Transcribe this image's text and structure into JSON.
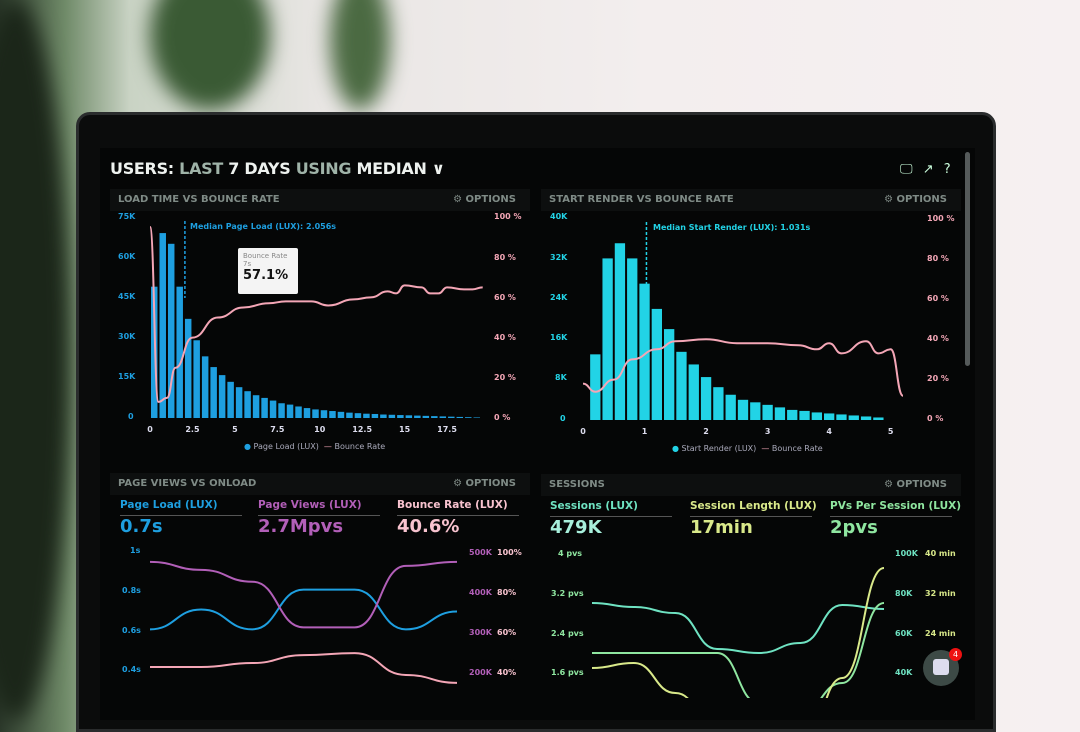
{
  "header": {
    "prefix": "USERS:",
    "part1": "LAST",
    "part2": "7 DAYS",
    "part3": "USING",
    "part4": "MEDIAN",
    "icons": [
      "monitor-icon",
      "share-icon",
      "help-icon"
    ]
  },
  "colors": {
    "blue": "#1e9fe0",
    "cyan": "#22d3e6",
    "pink": "#f4a6b6",
    "purple": "#b25fb8",
    "teal": "#6fe3c2",
    "yellow": "#d9e98a",
    "green": "#8fe6a0"
  },
  "options_label": "OPTIONS",
  "charts": {
    "load": {
      "title": "LOAD TIME VS BOUNCE RATE",
      "median_label": "Median Page Load (LUX): 2.056s",
      "median": 2.056,
      "tooltip": {
        "title": "Bounce Rate",
        "sub": "7s",
        "value": "57.1%"
      },
      "legend": [
        "Page Load (LUX)",
        "Bounce Rate"
      ],
      "y_ticks": [
        "75K",
        "60K",
        "45K",
        "30K",
        "15K",
        "0"
      ],
      "y2_ticks": [
        "100 %",
        "80 %",
        "60 %",
        "40 %",
        "20 %",
        "0 %"
      ],
      "x_ticks": [
        "0",
        "2.5",
        "5",
        "7.5",
        "10",
        "12.5",
        "15",
        "17.5"
      ]
    },
    "render": {
      "title": "START RENDER VS BOUNCE RATE",
      "median_label": "Median Start Render (LUX): 1.031s",
      "median": 1.031,
      "legend": [
        "Start Render (LUX)",
        "Bounce Rate"
      ],
      "y_ticks": [
        "40K",
        "32K",
        "24K",
        "16K",
        "8K",
        "0"
      ],
      "y2_ticks": [
        "100 %",
        "80 %",
        "60 %",
        "40 %",
        "20 %",
        "0 %"
      ],
      "x_ticks": [
        "0",
        "1",
        "2",
        "3",
        "4",
        "5"
      ]
    },
    "pageviews": {
      "title": "PAGE VIEWS VS ONLOAD",
      "kpis": [
        {
          "label": "Page Load (LUX)",
          "value": "0.7s"
        },
        {
          "label": "Page Views (LUX)",
          "value": "2.7Mpvs"
        },
        {
          "label": "Bounce Rate (LUX)",
          "value": "40.6%"
        }
      ],
      "y_ticks": [
        "1s",
        "0.8s",
        "0.6s",
        "0.4s"
      ],
      "y2_ticks": [
        "500K",
        "400K",
        "300K",
        "200K"
      ],
      "y3_ticks": [
        "100%",
        "80%",
        "60%",
        "40%"
      ]
    },
    "sessions": {
      "title": "SESSIONS",
      "kpis": [
        {
          "label": "Sessions (LUX)",
          "value": "479K"
        },
        {
          "label": "Session Length (LUX)",
          "value": "17min"
        },
        {
          "label": "PVs Per Session (LUX)",
          "value": "2pvs"
        }
      ],
      "y_ticks": [
        "4 pvs",
        "3.2 pvs",
        "2.4 pvs",
        "1.6 pvs"
      ],
      "y2_ticks": [
        "100K",
        "80K",
        "60K",
        "40K"
      ],
      "y3_ticks": [
        "40 min",
        "32 min",
        "24 min"
      ]
    }
  },
  "chat_badge": "4",
  "chart_data": [
    {
      "type": "bar",
      "title": "LOAD TIME VS BOUNCE RATE",
      "xlim": [
        0,
        19.5
      ],
      "ylim": [
        0,
        75000
      ],
      "y2lim": [
        0,
        100
      ],
      "series": [
        {
          "name": "Page Load (LUX)",
          "x_step": 0.5,
          "values": [
            49000,
            69000,
            65000,
            49000,
            37000,
            29000,
            23000,
            19000,
            16000,
            13500,
            11500,
            10000,
            8500,
            7500,
            6500,
            5500,
            5000,
            4300,
            3700,
            3200,
            2900,
            2600,
            2300,
            2000,
            1800,
            1600,
            1500,
            1300,
            1200,
            1100,
            1000,
            900,
            800,
            700,
            600,
            500,
            400,
            300,
            200
          ]
        },
        {
          "name": "Bounce Rate",
          "type": "line",
          "points": [
            [
              0,
              95
            ],
            [
              0.5,
              8
            ],
            [
              1,
              10
            ],
            [
              1.5,
              25
            ],
            [
              2.5,
              40
            ],
            [
              4,
              50
            ],
            [
              5.5,
              55
            ],
            [
              7,
              57.1
            ],
            [
              8,
              58
            ],
            [
              9.5,
              58
            ],
            [
              10.5,
              56
            ],
            [
              12,
              59
            ],
            [
              13,
              60
            ],
            [
              14,
              63
            ],
            [
              14.5,
              62
            ],
            [
              15,
              66
            ],
            [
              16,
              65
            ],
            [
              16.5,
              62
            ],
            [
              17,
              62
            ],
            [
              17.5,
              65
            ],
            [
              18.5,
              64
            ],
            [
              19,
              64
            ],
            [
              19.6,
              65
            ]
          ]
        }
      ]
    },
    {
      "type": "bar",
      "title": "START RENDER VS BOUNCE RATE",
      "xlim": [
        0,
        5.2
      ],
      "ylim": [
        0,
        40000
      ],
      "y2lim": [
        0,
        100
      ],
      "series": [
        {
          "name": "Start Render (LUX)",
          "x_step": 0.2,
          "values": [
            13000,
            32000,
            35000,
            32000,
            27000,
            22000,
            18000,
            13500,
            11000,
            8500,
            6500,
            5000,
            4000,
            3500,
            3000,
            2500,
            2000,
            1800,
            1500,
            1300,
            1100,
            900,
            700,
            500
          ]
        },
        {
          "name": "Bounce Rate",
          "type": "line",
          "points": [
            [
              0,
              18
            ],
            [
              0.2,
              14
            ],
            [
              0.5,
              20
            ],
            [
              0.8,
              30
            ],
            [
              1.2,
              35
            ],
            [
              1.5,
              39
            ],
            [
              2,
              40
            ],
            [
              2.5,
              38
            ],
            [
              3,
              38
            ],
            [
              3.5,
              37
            ],
            [
              3.8,
              35
            ],
            [
              4,
              38
            ],
            [
              4.2,
              33
            ],
            [
              4.6,
              39
            ],
            [
              4.8,
              33
            ],
            [
              5,
              35
            ],
            [
              5.2,
              12
            ]
          ]
        }
      ]
    },
    {
      "type": "line",
      "title": "PAGE VIEWS VS ONLOAD",
      "series": [
        {
          "name": "Page Load (LUX)",
          "axis": "0.4-1s",
          "values": [
            0.6,
            0.7,
            0.6,
            0.8,
            0.8,
            0.6,
            0.69
          ]
        },
        {
          "name": "Page Views (LUX)",
          "axis": "200K-500K",
          "values": [
            470,
            450,
            420,
            305,
            305,
            460,
            470
          ]
        },
        {
          "name": "Bounce Rate (LUX)",
          "axis": "40-100%",
          "values": [
            41,
            41,
            43,
            47,
            48,
            37,
            33
          ]
        }
      ]
    },
    {
      "type": "line",
      "title": "SESSIONS",
      "series": [
        {
          "name": "Sessions (LUX)",
          "axis": "40K-100K",
          "values": [
            75,
            73,
            70,
            52,
            50,
            55,
            74,
            72
          ]
        },
        {
          "name": "PVs Per Session (LUX)",
          "axis": "1.6-4 pvs",
          "values": [
            2.0,
            2.0,
            2.0,
            2.0,
            1.0,
            0.8,
            1.4,
            3.0
          ]
        },
        {
          "name": "Session Length (LUX)",
          "axis": "24-40 min",
          "values": [
            17,
            18,
            12,
            5,
            4,
            0,
            15,
            37
          ]
        }
      ]
    }
  ]
}
